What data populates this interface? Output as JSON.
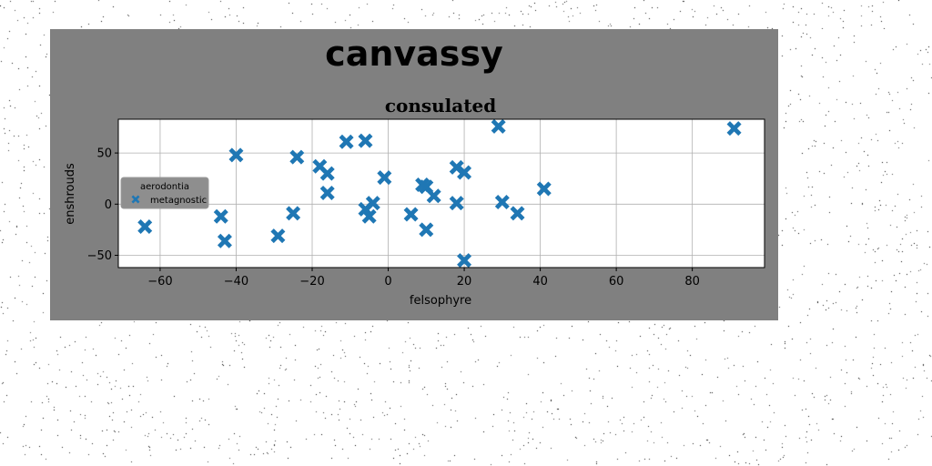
{
  "figure": {
    "suptitle": "canvassy"
  },
  "chart_data": {
    "type": "scatter",
    "title": "consulated",
    "xlabel": "felsophyre",
    "ylabel": "enshrouds",
    "xlim": [
      -71,
      99
    ],
    "ylim": [
      -62,
      83
    ],
    "xticks": [
      -60,
      -40,
      -20,
      0,
      20,
      40,
      60,
      80
    ],
    "yticks": [
      -50,
      0,
      50
    ],
    "grid": true,
    "legend": {
      "title": "aerodontia",
      "placement": "center-left"
    },
    "marker": "X",
    "series": [
      {
        "name": "metagnostic",
        "color": "#1f77b4",
        "points": [
          {
            "x": -64,
            "y": -22
          },
          {
            "x": -40,
            "y": 48
          },
          {
            "x": -44,
            "y": -12
          },
          {
            "x": -43,
            "y": -36
          },
          {
            "x": -29,
            "y": -31
          },
          {
            "x": -25,
            "y": -9
          },
          {
            "x": -24,
            "y": 46
          },
          {
            "x": -18,
            "y": 37
          },
          {
            "x": -16,
            "y": 30
          },
          {
            "x": -16,
            "y": 11
          },
          {
            "x": -11,
            "y": 61
          },
          {
            "x": -6,
            "y": 62
          },
          {
            "x": -6,
            "y": -5
          },
          {
            "x": -5,
            "y": -12
          },
          {
            "x": -4,
            "y": 1
          },
          {
            "x": -1,
            "y": 26
          },
          {
            "x": 6,
            "y": -10
          },
          {
            "x": 9,
            "y": 19
          },
          {
            "x": 10,
            "y": 17
          },
          {
            "x": 10,
            "y": -25
          },
          {
            "x": 12,
            "y": 8
          },
          {
            "x": 18,
            "y": 36
          },
          {
            "x": 20,
            "y": 31
          },
          {
            "x": 18,
            "y": 1
          },
          {
            "x": 20,
            "y": -55
          },
          {
            "x": 29,
            "y": 76
          },
          {
            "x": 30,
            "y": 2
          },
          {
            "x": 34,
            "y": -9
          },
          {
            "x": 41,
            "y": 15
          },
          {
            "x": 91,
            "y": 74
          }
        ]
      }
    ]
  }
}
